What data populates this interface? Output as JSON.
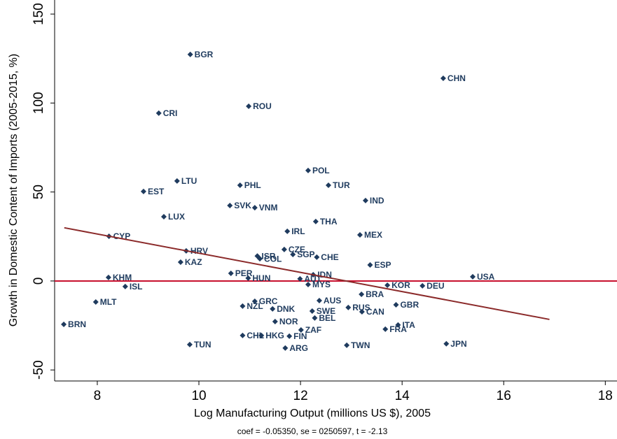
{
  "chart_data": {
    "type": "scatter",
    "xlabel": "Log Manufacturing Output (millions US $), 2005",
    "ylabel": "Growth in Domestic Content of Imports (2005-2015, %)",
    "note": "coef = -0.05350, se = 0250597,  t = -2.13",
    "color": "#1f3b5e",
    "labels": [
      "BGR",
      "CHN",
      "ROU",
      "CRI",
      "POL",
      "LTU",
      "PHL",
      "TUR",
      "EST",
      "IND",
      "SVK",
      "VNM",
      "LUX",
      "THA",
      "IRL",
      "MEX",
      "CYP",
      "HRV",
      "CZE",
      "SGP",
      "CHE",
      "ISR",
      "COL",
      "KAZ",
      "ESP",
      "PER",
      "USA",
      "IDN",
      "KHM",
      "HUN",
      "AUT",
      "MYS",
      "KOR",
      "DEU",
      "ISL",
      "BRA",
      "MLT",
      "AUS",
      "GRC",
      "NZL",
      "RUS",
      "GBR",
      "DNK",
      "SWE",
      "CAN",
      "BEL",
      "NOR",
      "ITA",
      "FRA",
      "BRN",
      "ZAF",
      "CHL",
      "HKG",
      "FIN",
      "TUN",
      "JPN",
      "TWN",
      "ARG"
    ],
    "x": [
      9.83,
      14.81,
      10.98,
      9.21,
      12.15,
      9.57,
      10.81,
      12.55,
      8.91,
      13.28,
      10.61,
      11.1,
      9.31,
      12.3,
      11.74,
      13.17,
      8.23,
      9.75,
      11.68,
      11.85,
      12.32,
      11.15,
      11.2,
      9.64,
      13.37,
      10.63,
      15.39,
      12.25,
      8.22,
      10.97,
      11.99,
      12.15,
      13.71,
      14.4,
      8.55,
      13.2,
      7.97,
      12.37,
      11.1,
      10.86,
      12.94,
      13.88,
      11.45,
      12.23,
      13.21,
      12.28,
      11.5,
      13.92,
      13.67,
      7.34,
      12.01,
      10.86,
      11.23,
      11.78,
      9.82,
      14.87,
      12.91,
      11.7
    ],
    "values": [
      127.3,
      113.9,
      98.2,
      94.3,
      62.1,
      56.2,
      53.8,
      53.8,
      50.3,
      45.2,
      42.4,
      41.2,
      36.1,
      33.4,
      27.9,
      25.9,
      25.1,
      16.9,
      17.7,
      14.9,
      13.4,
      14,
      12.5,
      10.6,
      9,
      4.3,
      2.4,
      3.5,
      2,
      1.6,
      1.2,
      -2,
      -2.4,
      -2.7,
      -3.1,
      -7.5,
      -11.8,
      -11,
      -11.4,
      -14.1,
      -14.9,
      -13.4,
      -15.7,
      -16.9,
      -17.3,
      -20.8,
      -22.8,
      -24.7,
      -27.1,
      -24.4,
      -27.5,
      -30.6,
      -30.6,
      -31,
      -35.7,
      -35.3,
      -36.1,
      -37.7
    ],
    "fit": {
      "color": "#8b2a2a",
      "x": [
        7.35,
        16.9
      ],
      "y": [
        29.9,
        -21.6
      ]
    },
    "reference_line": {
      "value": 0,
      "color": "#c8102e"
    },
    "xlim": [
      7.16,
      18.23
    ],
    "ylim": [
      -56.2,
      157.9
    ],
    "xticks": [
      8,
      10,
      12,
      14,
      16,
      18
    ],
    "yticks": [
      -50,
      0,
      50,
      100,
      150
    ]
  }
}
